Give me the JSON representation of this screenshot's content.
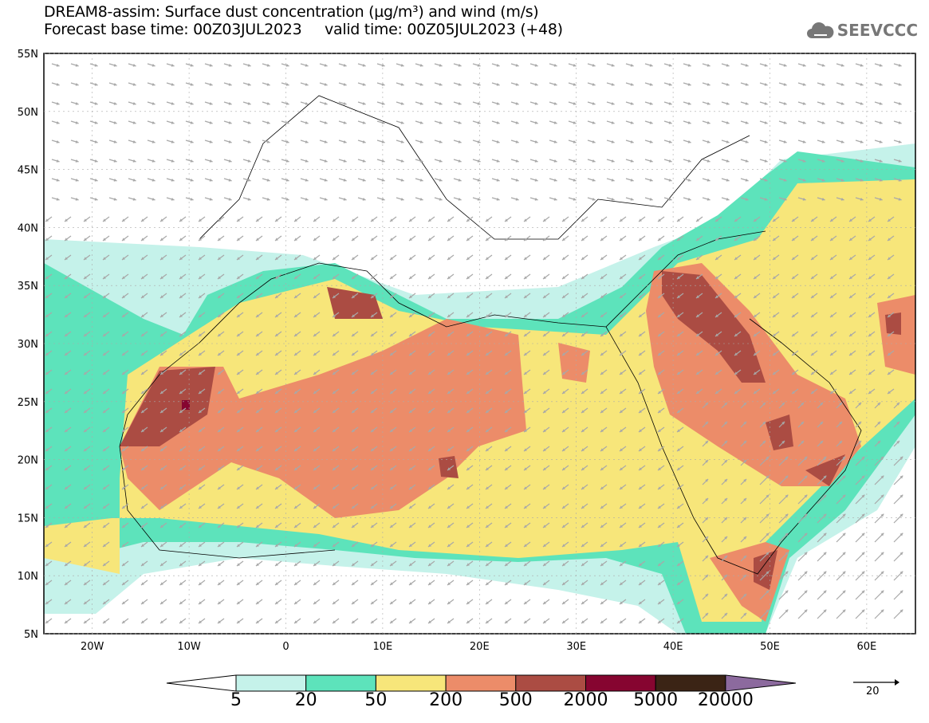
{
  "header": {
    "title": "DREAM8-assim: Surface dust concentration (µg/m³) and wind (m/s)",
    "subtitle": "Forecast base time: 00Z03JUL2023     valid time: 00Z05JUL2023 (+48)",
    "logo": "SEEVCCC"
  },
  "axes": {
    "lat_labels": [
      "55N",
      "50N",
      "45N",
      "40N",
      "35N",
      "30N",
      "25N",
      "20N",
      "15N",
      "10N",
      "5N"
    ],
    "lon_labels": [
      "20W",
      "10W",
      "0",
      "10E",
      "20E",
      "30E",
      "40E",
      "50E",
      "60E"
    ]
  },
  "legend": {
    "levels": [
      "5",
      "20",
      "50",
      "200",
      "500",
      "2000",
      "5000",
      "20000"
    ],
    "colors": [
      "#c5f2ea",
      "#5de3bb",
      "#f7e67a",
      "#ec8c69",
      "#ab4c43",
      "#860530",
      "#3b2415",
      "#8c6a9e"
    ],
    "wind_reference": "20"
  }
}
